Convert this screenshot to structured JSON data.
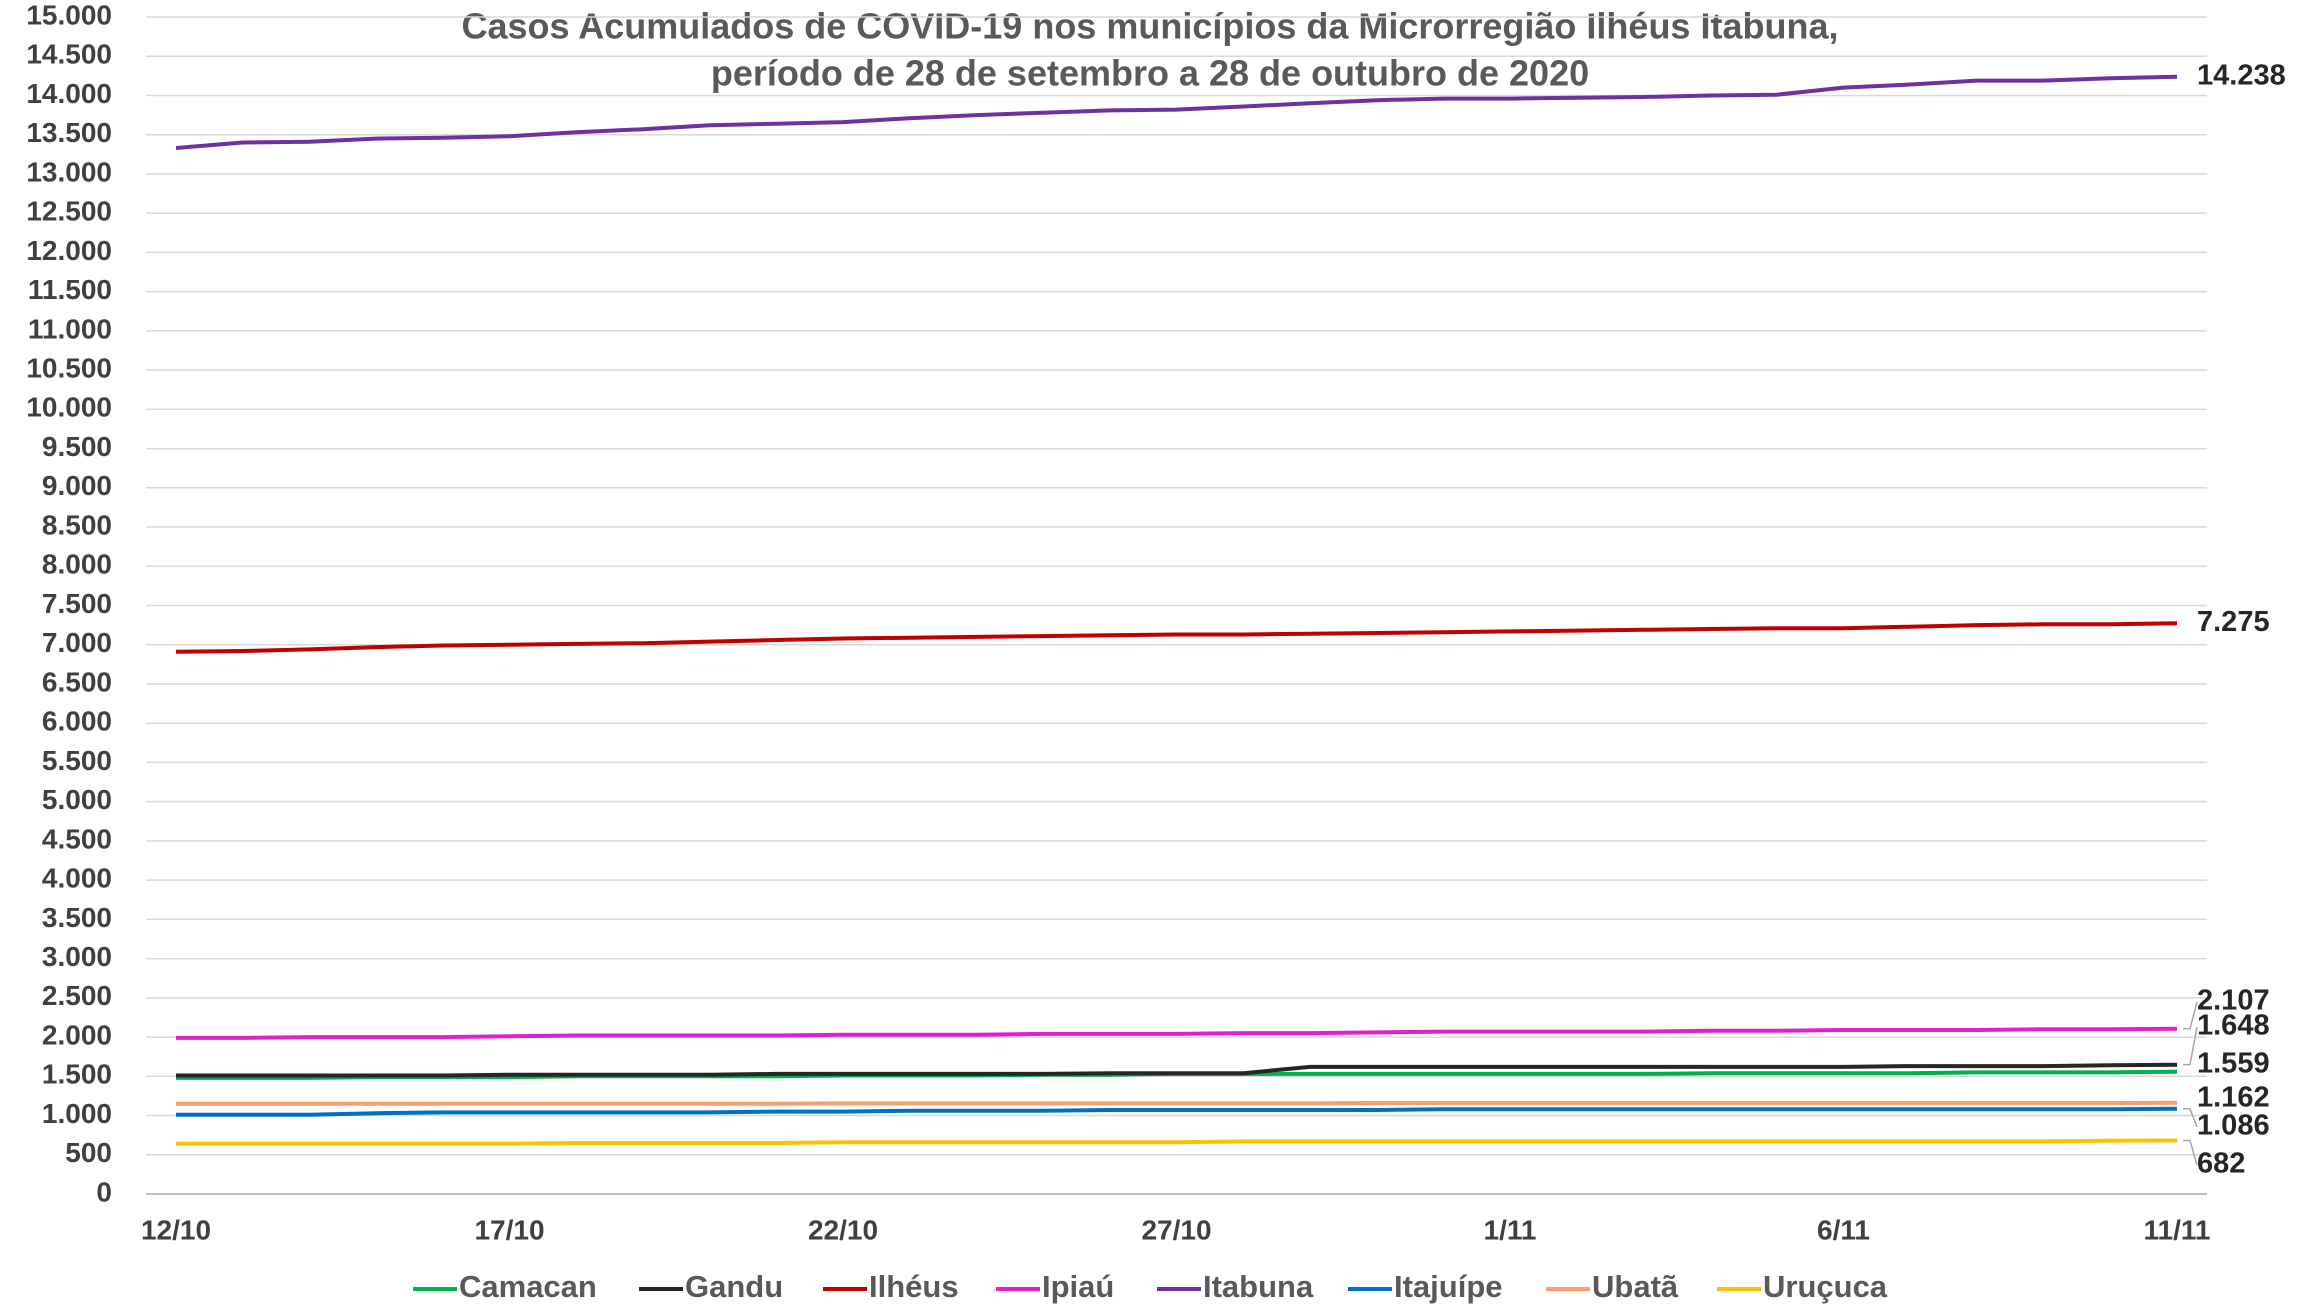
{
  "chart_data": {
    "type": "line",
    "title": [
      "Casos Acumulados  de COVID-19 nos municípios da Microrregião Ilhéus Itabuna,",
      "período de 28 de setembro a  28 de outubro de 2020"
    ],
    "categories": [
      "12/10",
      null,
      null,
      null,
      null,
      "17/10",
      null,
      null,
      null,
      null,
      "22/10",
      null,
      null,
      null,
      null,
      "27/10",
      null,
      null,
      null,
      null,
      "1/11",
      null,
      null,
      null,
      null,
      "6/11",
      null,
      null,
      null,
      null,
      "11/11"
    ],
    "ylim": [
      0,
      15000
    ],
    "yticks": [
      0,
      500,
      {
        "value": 1000,
        "label": "1.000"
      },
      {
        "value": 1500,
        "label": "1.500"
      },
      {
        "value": 2000,
        "label": "2.000"
      },
      {
        "value": 2500,
        "label": "2.500"
      },
      {
        "value": 3000,
        "label": "3.000"
      },
      {
        "value": 3500,
        "label": "3.500"
      },
      {
        "value": 4000,
        "label": "4.000"
      },
      {
        "value": 4500,
        "label": "4.500"
      },
      {
        "value": 5000,
        "label": "5.000"
      },
      {
        "value": 5500,
        "label": "5.500"
      },
      {
        "value": 6000,
        "label": "6.000"
      },
      {
        "value": 6500,
        "label": "6.500"
      },
      {
        "value": 7000,
        "label": "7.000"
      },
      {
        "value": 7500,
        "label": "7.500"
      },
      {
        "value": 8000,
        "label": "8.000"
      },
      {
        "value": 8500,
        "label": "8.500"
      },
      {
        "value": 9000,
        "label": "9.000"
      },
      {
        "value": 9500,
        "label": "9.500"
      },
      {
        "value": 10000,
        "label": "10.000"
      },
      {
        "value": 10500,
        "label": "10.500"
      },
      {
        "value": 11000,
        "label": "11.000"
      },
      {
        "value": 11500,
        "label": "11.500"
      },
      {
        "value": 12000,
        "label": "12.000"
      },
      {
        "value": 12500,
        "label": "12.500"
      },
      {
        "value": 13000,
        "label": "13.000"
      },
      {
        "value": 13500,
        "label": "13.500"
      },
      {
        "value": 14000,
        "label": "14.000"
      },
      {
        "value": 14500,
        "label": "14.500"
      },
      {
        "value": 15000,
        "label": "15.000"
      }
    ],
    "grid": true,
    "legend": "bottom",
    "series": [
      {
        "name": "Camacan",
        "color": "#00b050",
        "values": [
          1480,
          1480,
          1480,
          1490,
          1490,
          1490,
          1500,
          1500,
          1500,
          1500,
          1510,
          1510,
          1510,
          1520,
          1520,
          1530,
          1530,
          1530,
          1530,
          1530,
          1530,
          1530,
          1530,
          1540,
          1540,
          1540,
          1540,
          1550,
          1550,
          1550,
          1559
        ],
        "value_labels": [
          null,
          null,
          null,
          null,
          null,
          null,
          null,
          null,
          null,
          null,
          null,
          null,
          null,
          null,
          null,
          null,
          null,
          null,
          null,
          null,
          null,
          null,
          null,
          null,
          null,
          null,
          null,
          null,
          null,
          null,
          "1.559"
        ]
      },
      {
        "name": "Gandu",
        "color": "#262626",
        "values": [
          1510,
          1510,
          1510,
          1510,
          1510,
          1520,
          1520,
          1520,
          1520,
          1530,
          1530,
          1530,
          1530,
          1530,
          1540,
          1540,
          1540,
          1620,
          1620,
          1620,
          1620,
          1620,
          1620,
          1620,
          1620,
          1620,
          1630,
          1630,
          1630,
          1640,
          1648
        ],
        "value_labels": [
          null,
          null,
          null,
          null,
          null,
          null,
          null,
          null,
          null,
          null,
          null,
          null,
          null,
          null,
          null,
          null,
          null,
          null,
          null,
          null,
          null,
          null,
          null,
          null,
          null,
          null,
          null,
          null,
          null,
          null,
          "1.648"
        ]
      },
      {
        "name": "Ilhéus",
        "color": "#c00000",
        "values": [
          6910,
          6920,
          6940,
          6970,
          6990,
          7000,
          7010,
          7020,
          7040,
          7060,
          7080,
          7090,
          7100,
          7110,
          7120,
          7130,
          7130,
          7140,
          7150,
          7160,
          7170,
          7180,
          7190,
          7200,
          7210,
          7210,
          7230,
          7250,
          7260,
          7260,
          7275
        ],
        "value_labels": [
          null,
          null,
          null,
          null,
          null,
          null,
          null,
          null,
          null,
          null,
          null,
          null,
          null,
          null,
          null,
          null,
          null,
          null,
          null,
          null,
          null,
          null,
          null,
          null,
          null,
          null,
          null,
          null,
          null,
          null,
          "7.275"
        ]
      },
      {
        "name": "Ipiaú",
        "color": "#e020d0",
        "values": [
          1990,
          1990,
          2000,
          2000,
          2000,
          2010,
          2020,
          2020,
          2020,
          2020,
          2030,
          2030,
          2030,
          2040,
          2040,
          2040,
          2050,
          2050,
          2060,
          2070,
          2070,
          2070,
          2070,
          2080,
          2080,
          2090,
          2090,
          2090,
          2100,
          2100,
          2107
        ],
        "value_labels": [
          null,
          null,
          null,
          null,
          null,
          null,
          null,
          null,
          null,
          null,
          null,
          null,
          null,
          null,
          null,
          null,
          null,
          null,
          null,
          null,
          null,
          null,
          null,
          null,
          null,
          null,
          null,
          null,
          null,
          null,
          "2.107"
        ]
      },
      {
        "name": "Itabuna",
        "color": "#7030a0",
        "values": [
          13330,
          13400,
          13410,
          13450,
          13460,
          13480,
          13530,
          13570,
          13620,
          13640,
          13660,
          13710,
          13750,
          13780,
          13810,
          13820,
          13860,
          13900,
          13940,
          13960,
          13960,
          13970,
          13980,
          14000,
          14010,
          14100,
          14140,
          14190,
          14190,
          14220,
          14238
        ],
        "value_labels": [
          null,
          null,
          null,
          null,
          null,
          null,
          null,
          null,
          null,
          null,
          null,
          null,
          null,
          null,
          null,
          null,
          null,
          null,
          null,
          null,
          null,
          null,
          null,
          null,
          null,
          null,
          null,
          null,
          null,
          null,
          "14.238"
        ]
      },
      {
        "name": "Itajuípe",
        "color": "#0070c0",
        "values": [
          1010,
          1010,
          1010,
          1030,
          1040,
          1040,
          1040,
          1040,
          1040,
          1050,
          1050,
          1060,
          1060,
          1060,
          1070,
          1070,
          1070,
          1070,
          1070,
          1080,
          1080,
          1080,
          1080,
          1080,
          1080,
          1080,
          1080,
          1080,
          1080,
          1080,
          1086
        ],
        "value_labels": [
          null,
          null,
          null,
          null,
          null,
          null,
          null,
          null,
          null,
          null,
          null,
          null,
          null,
          null,
          null,
          null,
          null,
          null,
          null,
          null,
          null,
          null,
          null,
          null,
          null,
          null,
          null,
          null,
          null,
          null,
          "1.086"
        ]
      },
      {
        "name": "Ubatã",
        "color": "#f4a070",
        "values": [
          1150,
          1150,
          1150,
          1150,
          1150,
          1150,
          1150,
          1150,
          1150,
          1150,
          1155,
          1155,
          1155,
          1155,
          1155,
          1155,
          1155,
          1155,
          1160,
          1160,
          1160,
          1160,
          1160,
          1160,
          1160,
          1160,
          1160,
          1160,
          1160,
          1160,
          1162
        ],
        "value_labels": [
          null,
          null,
          null,
          null,
          null,
          null,
          null,
          null,
          null,
          null,
          null,
          null,
          null,
          null,
          null,
          null,
          null,
          null,
          null,
          null,
          null,
          null,
          null,
          null,
          null,
          null,
          null,
          null,
          null,
          null,
          "1.162"
        ]
      },
      {
        "name": "Uruçuca",
        "color": "#ffc000",
        "values": [
          640,
          640,
          640,
          640,
          640,
          640,
          650,
          650,
          650,
          650,
          660,
          660,
          660,
          660,
          660,
          660,
          670,
          670,
          670,
          670,
          670,
          670,
          670,
          670,
          670,
          670,
          670,
          670,
          670,
          680,
          682
        ],
        "value_labels": [
          null,
          null,
          null,
          null,
          null,
          null,
          null,
          null,
          null,
          null,
          null,
          null,
          null,
          null,
          null,
          null,
          null,
          null,
          null,
          null,
          null,
          null,
          null,
          null,
          null,
          null,
          null,
          null,
          null,
          null,
          "682"
        ]
      }
    ]
  }
}
